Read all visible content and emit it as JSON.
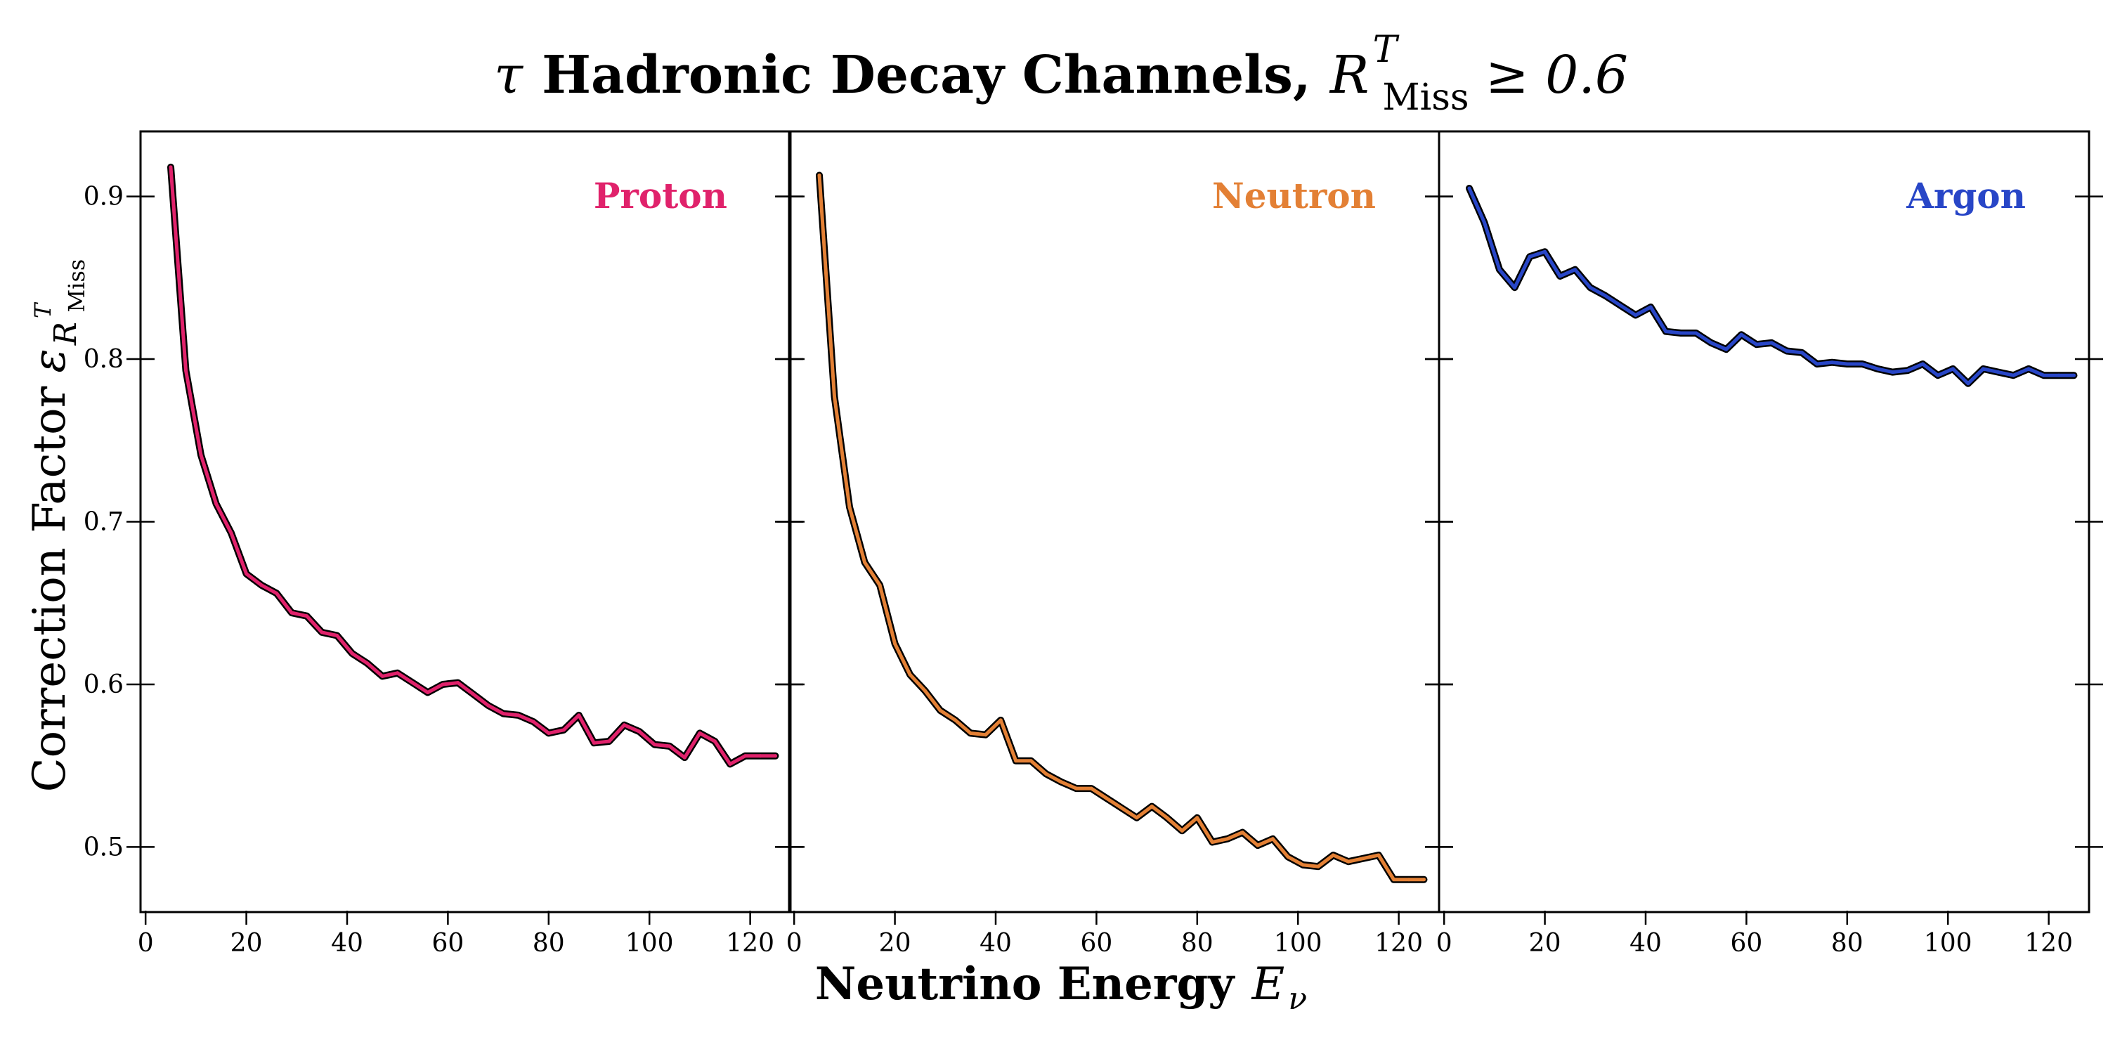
{
  "title": {
    "prefix": "τ",
    "main": "Hadronic Decay Channels,",
    "var": "R",
    "var_sup": "T",
    "var_sub": "Miss",
    "condition": "≥ 0.6"
  },
  "ylabel": {
    "text": "Correction Factor",
    "symbol": "ε",
    "symbol_sub": "R",
    "symbol_sub_sup": "T",
    "symbol_sub_sub": "Miss"
  },
  "xlabel": {
    "text": "Neutrino Energy",
    "symbol": "E",
    "symbol_sub": "ν"
  },
  "chart_data": {
    "type": "line",
    "xlim": [
      -1,
      128
    ],
    "ylim": [
      0.46,
      0.94
    ],
    "xticks": [
      0,
      20,
      40,
      60,
      80,
      100,
      120
    ],
    "xtick_labels": [
      "0",
      "20",
      "40",
      "60",
      "80",
      "100",
      "120"
    ],
    "yticks": [
      0.5,
      0.6,
      0.7,
      0.8,
      0.9
    ],
    "ytick_labels": [
      "0.5",
      "0.6",
      "0.7",
      "0.8",
      "0.9"
    ],
    "x": [
      5,
      8,
      11,
      14,
      17,
      20,
      23,
      26,
      29,
      32,
      35,
      38,
      41,
      44,
      47,
      50,
      53,
      56,
      59,
      62,
      65,
      68,
      71,
      74,
      77,
      80,
      83,
      86,
      89,
      92,
      95,
      98,
      101,
      104,
      107,
      110,
      113,
      116,
      119,
      122,
      125
    ],
    "panels": [
      {
        "name": "Proton",
        "color": "#e0226b",
        "values": [
          0.918,
          0.793,
          0.741,
          0.711,
          0.693,
          0.668,
          0.661,
          0.656,
          0.644,
          0.642,
          0.632,
          0.63,
          0.619,
          0.613,
          0.605,
          0.607,
          0.601,
          0.595,
          0.6,
          0.601,
          0.594,
          0.587,
          0.582,
          0.581,
          0.577,
          0.57,
          0.572,
          0.581,
          0.564,
          0.565,
          0.575,
          0.571,
          0.563,
          0.562,
          0.555,
          0.57,
          0.565,
          0.551,
          0.556,
          0.556,
          0.556
        ]
      },
      {
        "name": "Neutron",
        "color": "#e38035",
        "values": [
          0.913,
          0.777,
          0.709,
          0.675,
          0.661,
          0.625,
          0.606,
          0.596,
          0.584,
          0.578,
          0.57,
          0.569,
          0.578,
          0.553,
          0.553,
          0.545,
          0.54,
          0.536,
          0.536,
          0.53,
          0.524,
          0.518,
          0.525,
          0.518,
          0.51,
          0.518,
          0.503,
          0.505,
          0.509,
          0.501,
          0.505,
          0.494,
          0.489,
          0.488,
          0.495,
          0.491,
          0.493,
          0.495,
          0.48,
          0.48,
          0.48
        ]
      },
      {
        "name": "Argon",
        "color": "#2846c7",
        "values": [
          0.905,
          0.884,
          0.855,
          0.844,
          0.863,
          0.866,
          0.851,
          0.855,
          0.844,
          0.839,
          0.833,
          0.827,
          0.832,
          0.817,
          0.816,
          0.816,
          0.81,
          0.806,
          0.815,
          0.809,
          0.81,
          0.805,
          0.804,
          0.797,
          0.798,
          0.797,
          0.797,
          0.794,
          0.792,
          0.793,
          0.797,
          0.79,
          0.794,
          0.785,
          0.794,
          0.792,
          0.79,
          0.794,
          0.79,
          0.79,
          0.79
        ]
      }
    ]
  }
}
